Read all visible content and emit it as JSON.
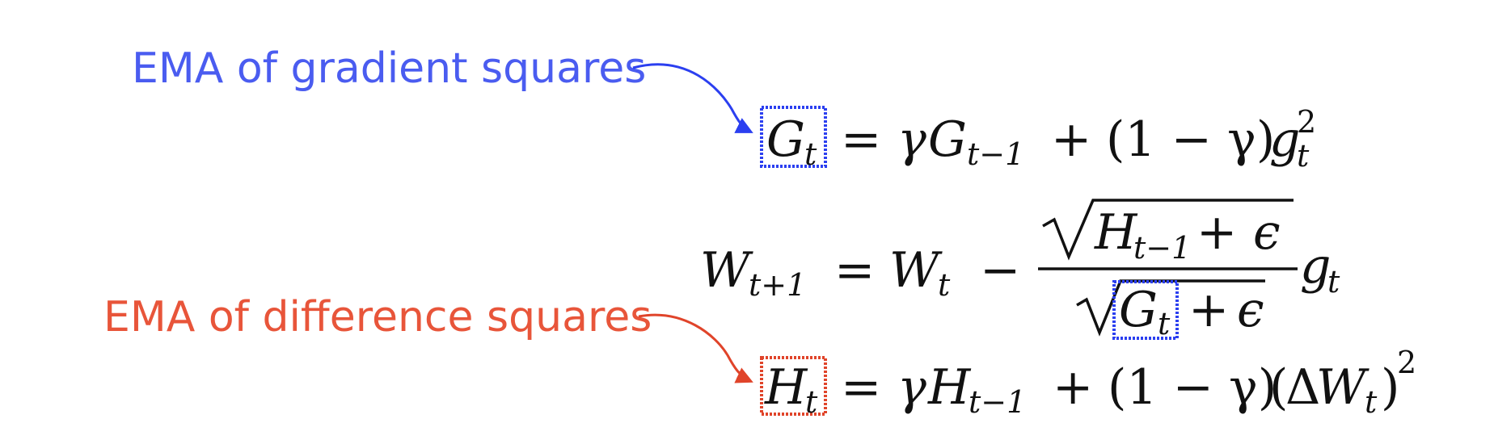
{
  "annotations": {
    "gradient": {
      "text": "EMA of gradient squares",
      "color": "#4a5cf0"
    },
    "difference": {
      "text": "EMA of difference squares",
      "color": "#e8553a"
    }
  },
  "box_colors": {
    "blue": "#2b3ff0",
    "red": "#e0442a"
  },
  "equations": {
    "g": {
      "lhs": "G",
      "lhs_sub": "t",
      "eq": "=",
      "gamma": "γ",
      "rhs1": "G",
      "rhs1_sub": "t−1",
      "plus": "+",
      "factor": "(1 − γ)",
      "grad": "g",
      "grad_sub": "t",
      "grad_sup": "2"
    },
    "w": {
      "lhs": "W",
      "lhs_sub": "t+1",
      "eq": "=",
      "w": "W",
      "w_sub": "t",
      "minus": "−",
      "num_var": "H",
      "num_sub": "t−1",
      "num_plus": "+",
      "num_eps": "ϵ",
      "den_var": "G",
      "den_sub": "t",
      "den_plus": "+",
      "den_eps": "ϵ",
      "grad": "g",
      "grad_sub": "t"
    },
    "h": {
      "lhs": "H",
      "lhs_sub": "t",
      "eq": "=",
      "gamma": "γ",
      "rhs1": "H",
      "rhs1_sub": "t−1",
      "plus": "+",
      "factor": "(1 − γ)",
      "open": "(",
      "delta": "Δ",
      "w": "W",
      "w_sub": "t",
      "close": ")",
      "sup": "2"
    }
  }
}
